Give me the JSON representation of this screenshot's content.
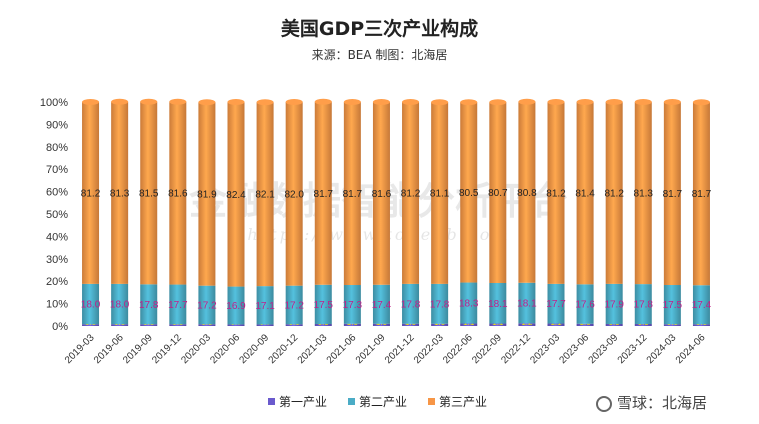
{
  "chart_data": {
    "type": "bar",
    "stacked": true,
    "title": "美国GDP三次产业构成",
    "subtitle": "来源：BEA 制图：北海居",
    "categories": [
      "2019-03",
      "2019-06",
      "2019-09",
      "2019-12",
      "2020-03",
      "2020-06",
      "2020-09",
      "2020-12",
      "2021-03",
      "2021-06",
      "2021-09",
      "2021-12",
      "2022-03",
      "2022-06",
      "2022-09",
      "2022-12",
      "2023-03",
      "2023-06",
      "2023-09",
      "2023-12",
      "2024-03",
      "2024-06"
    ],
    "series": [
      {
        "name": "第一产业",
        "color": "#6a5acd",
        "values": [
          0.8,
          0.8,
          0.8,
          0.8,
          0.8,
          0.7,
          0.7,
          0.8,
          0.9,
          1.0,
          1.0,
          1.0,
          1.0,
          1.1,
          1.1,
          1.2,
          1.1,
          1.0,
          0.9,
          0.9,
          0.8,
          0.8
        ]
      },
      {
        "name": "第二产业",
        "color": "#4bacc6",
        "values": [
          18.0,
          18.0,
          17.8,
          17.7,
          17.2,
          16.9,
          17.1,
          17.2,
          17.5,
          17.3,
          17.4,
          17.8,
          17.8,
          18.3,
          18.1,
          18.1,
          17.7,
          17.6,
          17.9,
          17.8,
          17.5,
          17.4
        ]
      },
      {
        "name": "第三产业",
        "color": "#f79646",
        "values": [
          81.2,
          81.3,
          81.5,
          81.6,
          81.9,
          82.4,
          82.1,
          82.0,
          81.7,
          81.7,
          81.6,
          81.2,
          81.1,
          80.5,
          80.7,
          80.8,
          81.2,
          81.4,
          81.2,
          81.3,
          81.7,
          81.7
        ]
      }
    ],
    "yticks": [
      "0%",
      "10%",
      "20%",
      "30%",
      "40%",
      "50%",
      "60%",
      "70%",
      "80%",
      "90%",
      "100%"
    ],
    "ylim": [
      0,
      100
    ],
    "legend_position": "bottom",
    "grid": false
  },
  "watermark": {
    "background_text": "金融数据智能分析平台",
    "background_url": "https://www.topedb.com",
    "corner": "雪球：北海居"
  }
}
